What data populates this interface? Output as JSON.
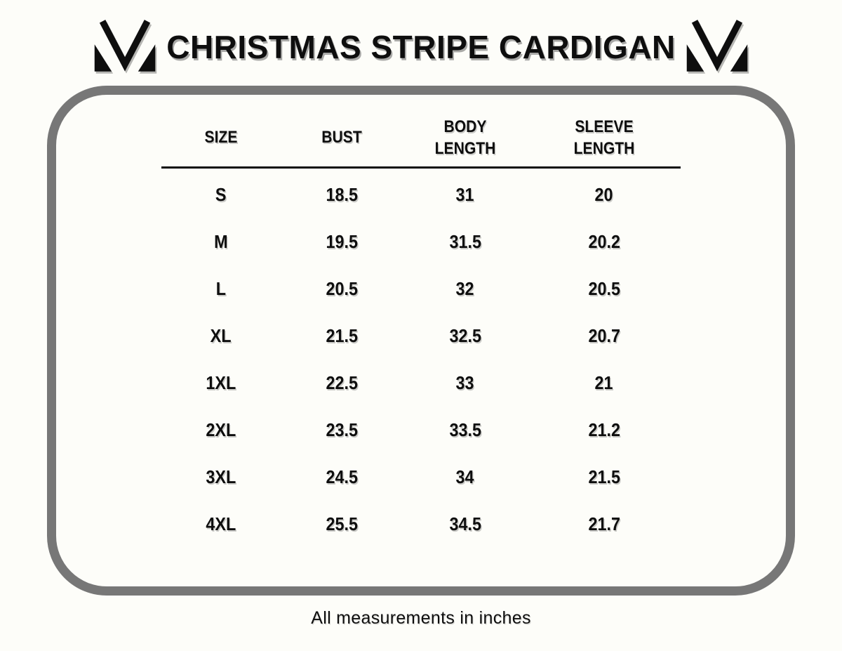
{
  "title": "CHRISTMAS STRIPE CARDIGAN",
  "brand": {
    "logo_icon": "mv-monogram-icon",
    "logo_color": "#0e0e0e"
  },
  "chart_data": {
    "type": "table",
    "title": "CHRISTMAS STRIPE CARDIGAN",
    "columns": [
      "SIZE",
      "BUST",
      "BODY LENGTH",
      "SLEEVE LENGTH"
    ],
    "rows": [
      [
        "S",
        "18.5",
        "31",
        "20"
      ],
      [
        "M",
        "19.5",
        "31.5",
        "20.2"
      ],
      [
        "L",
        "20.5",
        "32",
        "20.5"
      ],
      [
        "XL",
        "21.5",
        "32.5",
        "20.7"
      ],
      [
        "1XL",
        "22.5",
        "33",
        "21"
      ],
      [
        "2XL",
        "23.5",
        "33.5",
        "21.2"
      ],
      [
        "3XL",
        "24.5",
        "34",
        "21.5"
      ],
      [
        "4XL",
        "25.5",
        "34.5",
        "21.7"
      ]
    ],
    "note": "All measurements in inches",
    "units": "inches"
  },
  "colors": {
    "background": "#fdfdf9",
    "frame_border": "#777777",
    "text": "#0e0e0e",
    "shadow": "#9e9e9e"
  }
}
